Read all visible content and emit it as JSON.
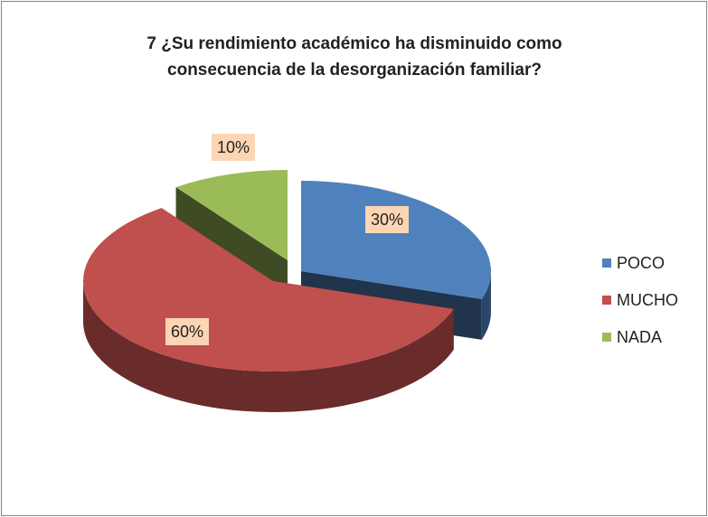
{
  "chart_data": {
    "type": "pie",
    "title": "7 ¿Su rendimiento académico ha disminuido como consecuencia de la desorganización familiar?",
    "categories": [
      "POCO",
      "MUCHO",
      "NADA"
    ],
    "values": [
      30,
      60,
      10
    ],
    "value_labels": [
      "30%",
      "60%",
      "10%"
    ],
    "colors": [
      "#4f81bd",
      "#c0504d",
      "#9bbb59"
    ],
    "legend": "right"
  }
}
